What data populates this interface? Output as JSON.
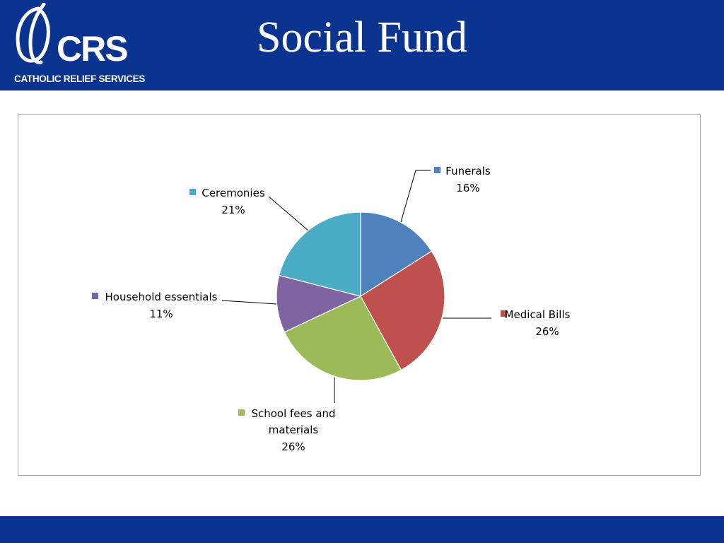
{
  "slide": {
    "title": "Social Fund",
    "logo": {
      "letters": "CRS",
      "subtitle": "CATHOLIC RELIEF SERVICES"
    }
  },
  "colors": {
    "header_bg": "#0b3491",
    "Funerals": "#4f81bd",
    "Medical Bills": "#c0504d",
    "School fees and materials": "#9bbb59",
    "Household essentials": "#8064a2",
    "Ceremonies": "#4bacc6"
  },
  "chart_data": {
    "type": "pie",
    "title": "",
    "legend": "none",
    "data_labels": "category name and percentage, outside with leader lines",
    "slices": [
      {
        "label": "Funerals",
        "value": 16,
        "display": "16%",
        "color": "#4f81bd"
      },
      {
        "label": "Medical Bills",
        "value": 26,
        "display": "26%",
        "color": "#c0504d"
      },
      {
        "label": "School fees and materials",
        "value": 26,
        "display": "26%",
        "color": "#9bbb59"
      },
      {
        "label": "Household essentials",
        "value": 11,
        "display": "11%",
        "color": "#8064a2"
      },
      {
        "label": "Ceremonies",
        "value": 21,
        "display": "21%",
        "color": "#4bacc6"
      }
    ]
  }
}
